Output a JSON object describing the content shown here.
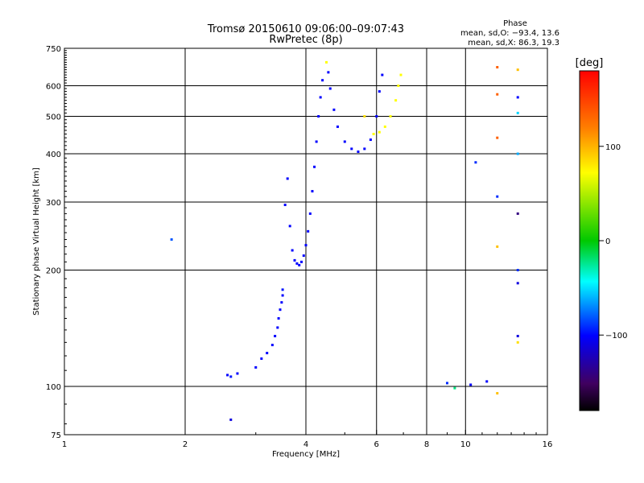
{
  "chart_data": {
    "type": "scatter",
    "title": "Tromsø 20150610 09:06:00–09:07:43",
    "subtitle": "RwPretec (8p)",
    "xlabel": "Frequency [MHz]",
    "ylabel": "Stationary phase Virtual Height [km]",
    "x_scale": "log",
    "y_scale": "log",
    "xlim": [
      1,
      16
    ],
    "ylim": [
      75,
      750
    ],
    "x_ticks": [
      1,
      2,
      4,
      6,
      8,
      10,
      16
    ],
    "y_ticks": [
      75,
      100,
      200,
      300,
      400,
      500,
      600,
      750
    ],
    "grid": true,
    "phase_box": {
      "heading": "Phase",
      "line_o": "mean, sd,O: −93.4, 13.6",
      "line_x": "mean, sd,X:  86.3, 19.3"
    },
    "colorbar": {
      "label": "[deg]",
      "ticks": [
        "100",
        "0",
        "−100"
      ],
      "range": [
        -180,
        180
      ]
    },
    "series": [
      {
        "points": [
          {
            "x": 2.6,
            "y": 82,
            "phase": -110
          },
          {
            "x": 2.55,
            "y": 107,
            "phase": -100
          },
          {
            "x": 2.6,
            "y": 106,
            "phase": -95
          },
          {
            "x": 2.7,
            "y": 108,
            "phase": -100
          },
          {
            "x": 3.0,
            "y": 112,
            "phase": -100
          },
          {
            "x": 3.1,
            "y": 118,
            "phase": -100
          },
          {
            "x": 3.2,
            "y": 122,
            "phase": -100
          },
          {
            "x": 3.3,
            "y": 128,
            "phase": -100
          },
          {
            "x": 3.35,
            "y": 135,
            "phase": -100
          },
          {
            "x": 3.4,
            "y": 142,
            "phase": -100
          },
          {
            "x": 3.42,
            "y": 150,
            "phase": -100
          },
          {
            "x": 3.45,
            "y": 158,
            "phase": -100
          },
          {
            "x": 3.48,
            "y": 165,
            "phase": -100
          },
          {
            "x": 3.5,
            "y": 172,
            "phase": -100
          },
          {
            "x": 3.5,
            "y": 178,
            "phase": -95
          },
          {
            "x": 3.55,
            "y": 295,
            "phase": -100
          },
          {
            "x": 3.6,
            "y": 345,
            "phase": -100
          },
          {
            "x": 3.65,
            "y": 260,
            "phase": -100
          },
          {
            "x": 3.7,
            "y": 225,
            "phase": -100
          },
          {
            "x": 3.75,
            "y": 212,
            "phase": -100
          },
          {
            "x": 3.8,
            "y": 208,
            "phase": -100
          },
          {
            "x": 3.85,
            "y": 206,
            "phase": -100
          },
          {
            "x": 3.9,
            "y": 210,
            "phase": -100
          },
          {
            "x": 3.95,
            "y": 218,
            "phase": -100
          },
          {
            "x": 4.0,
            "y": 232,
            "phase": -100
          },
          {
            "x": 4.05,
            "y": 252,
            "phase": -100
          },
          {
            "x": 4.1,
            "y": 280,
            "phase": -100
          },
          {
            "x": 4.15,
            "y": 320,
            "phase": -100
          },
          {
            "x": 4.2,
            "y": 370,
            "phase": -100
          },
          {
            "x": 4.25,
            "y": 430,
            "phase": -100
          },
          {
            "x": 4.3,
            "y": 500,
            "phase": -100
          },
          {
            "x": 4.35,
            "y": 560,
            "phase": -100
          },
          {
            "x": 4.4,
            "y": 620,
            "phase": -100
          },
          {
            "x": 4.5,
            "y": 690,
            "phase": 100
          },
          {
            "x": 4.55,
            "y": 650,
            "phase": -100
          },
          {
            "x": 4.6,
            "y": 590,
            "phase": -100
          },
          {
            "x": 4.7,
            "y": 520,
            "phase": -100
          },
          {
            "x": 4.8,
            "y": 470,
            "phase": -100
          },
          {
            "x": 5.0,
            "y": 430,
            "phase": -100
          },
          {
            "x": 5.2,
            "y": 412,
            "phase": -100
          },
          {
            "x": 5.4,
            "y": 405,
            "phase": -100
          },
          {
            "x": 5.6,
            "y": 412,
            "phase": -100
          },
          {
            "x": 5.8,
            "y": 435,
            "phase": -100
          },
          {
            "x": 6.0,
            "y": 500,
            "phase": -100
          },
          {
            "x": 6.1,
            "y": 580,
            "phase": -100
          },
          {
            "x": 6.2,
            "y": 640,
            "phase": -100
          },
          {
            "x": 5.6,
            "y": 500,
            "phase": 110
          },
          {
            "x": 5.9,
            "y": 450,
            "phase": 100
          },
          {
            "x": 6.1,
            "y": 455,
            "phase": 100
          },
          {
            "x": 6.3,
            "y": 470,
            "phase": 100
          },
          {
            "x": 6.5,
            "y": 500,
            "phase": 100
          },
          {
            "x": 6.7,
            "y": 550,
            "phase": 100
          },
          {
            "x": 6.8,
            "y": 600,
            "phase": 100
          },
          {
            "x": 6.9,
            "y": 640,
            "phase": 100
          },
          {
            "x": 1.85,
            "y": 240,
            "phase": -80
          },
          {
            "x": 9.0,
            "y": 102,
            "phase": -90
          },
          {
            "x": 9.4,
            "y": 99,
            "phase": -20
          },
          {
            "x": 10.3,
            "y": 101,
            "phase": -100
          },
          {
            "x": 10.6,
            "y": 380,
            "phase": -90
          },
          {
            "x": 11.3,
            "y": 103,
            "phase": -100
          },
          {
            "x": 12.0,
            "y": 670,
            "phase": 150
          },
          {
            "x": 12.0,
            "y": 570,
            "phase": 150
          },
          {
            "x": 12.0,
            "y": 440,
            "phase": 150
          },
          {
            "x": 12.0,
            "y": 310,
            "phase": -90
          },
          {
            "x": 12.0,
            "y": 230,
            "phase": 120
          },
          {
            "x": 12.0,
            "y": 96,
            "phase": 120
          },
          {
            "x": 13.5,
            "y": 660,
            "phase": 120
          },
          {
            "x": 13.5,
            "y": 560,
            "phase": -100
          },
          {
            "x": 13.5,
            "y": 510,
            "phase": -50
          },
          {
            "x": 13.5,
            "y": 400,
            "phase": -60
          },
          {
            "x": 13.5,
            "y": 280,
            "phase": -140
          },
          {
            "x": 13.5,
            "y": 200,
            "phase": -90
          },
          {
            "x": 13.5,
            "y": 185,
            "phase": -110
          },
          {
            "x": 13.5,
            "y": 135,
            "phase": -110
          },
          {
            "x": 13.5,
            "y": 130,
            "phase": 110
          }
        ]
      }
    ]
  }
}
